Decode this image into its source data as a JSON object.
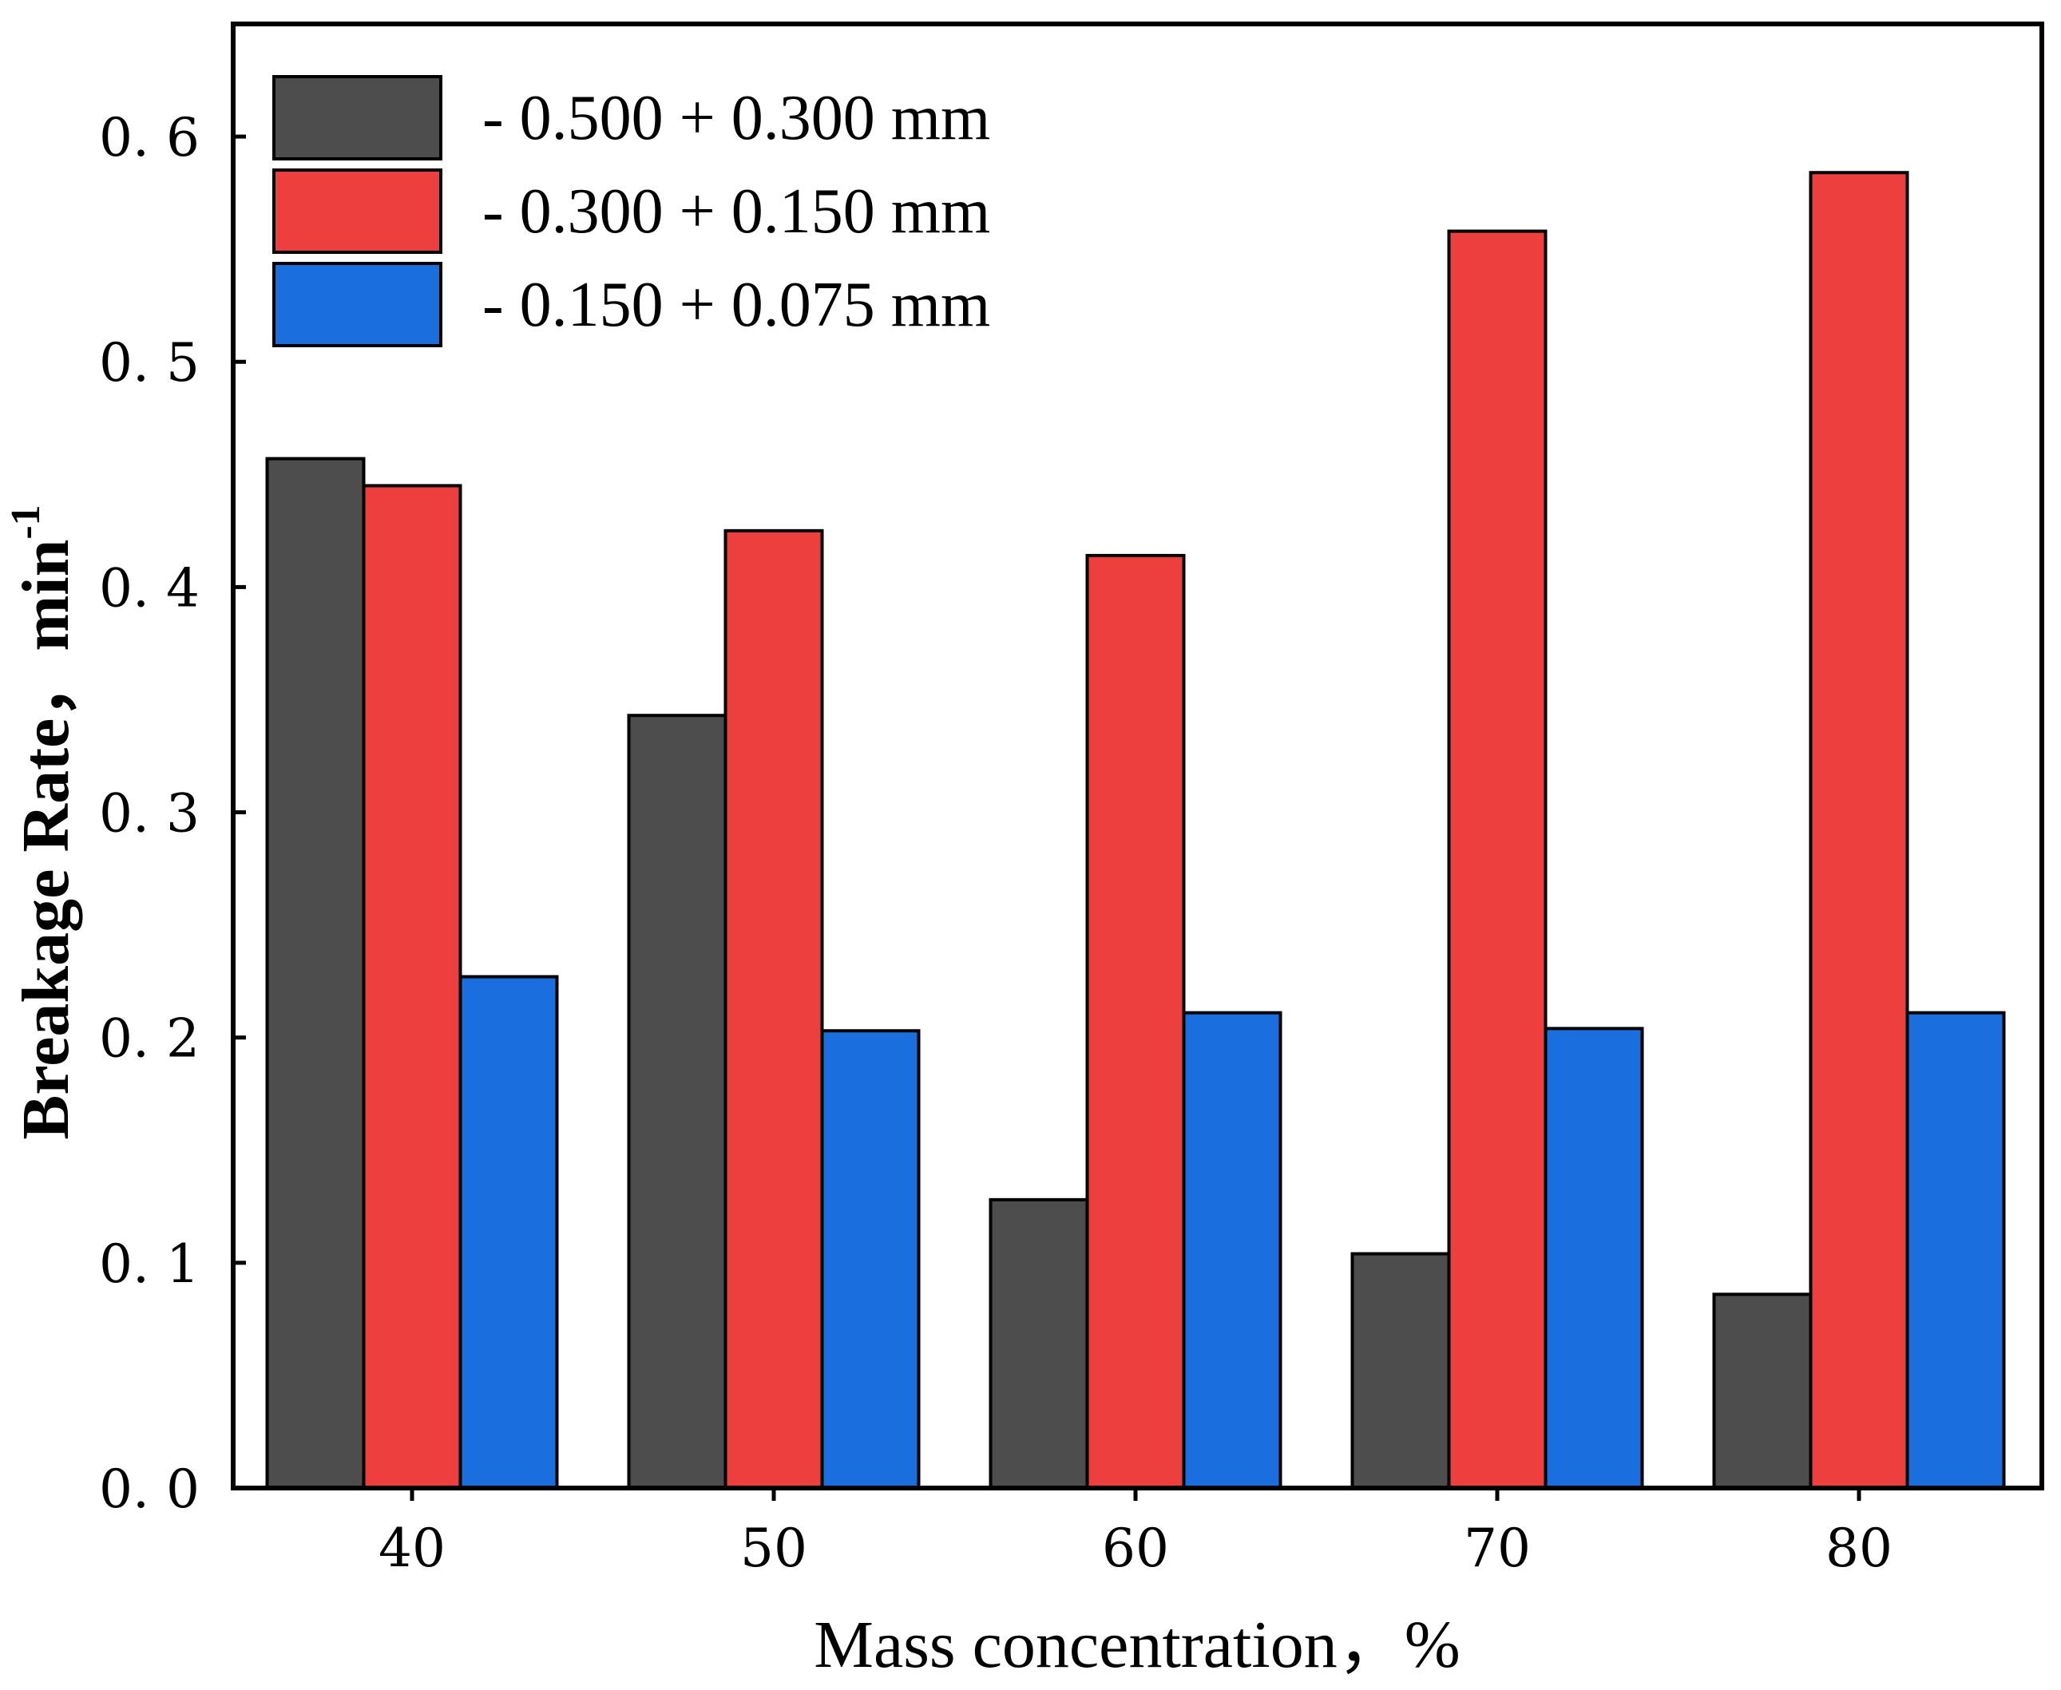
{
  "chart_data": {
    "type": "bar",
    "title": "",
    "categories": [
      "40",
      "50",
      "60",
      "70",
      "80"
    ],
    "series": [
      {
        "name": "- 0.500 + 0.300 mm",
        "color": "#4d4d4d",
        "values": [
          0.457,
          0.343,
          0.128,
          0.104,
          0.086
        ]
      },
      {
        "name": "- 0.300 + 0.150 mm",
        "color": "#ee3f3f",
        "values": [
          0.445,
          0.425,
          0.414,
          0.558,
          0.584
        ]
      },
      {
        "name": "- 0.150 + 0.075 mm",
        "color": "#1b6ede",
        "values": [
          0.227,
          0.203,
          0.211,
          0.204,
          0.211
        ]
      }
    ],
    "xlabel": "Mass concentration，%",
    "ylabel": "Breakage Rate，min",
    "ylabel_sup": "-1",
    "ylim": [
      0,
      0.65
    ],
    "yticks": [
      "0. 0",
      "0. 1",
      "0. 2",
      "0. 3",
      "0. 4",
      "0. 5",
      "0. 6"
    ],
    "ytick_values": [
      0,
      0.1,
      0.2,
      0.3,
      0.4,
      0.5,
      0.6
    ],
    "grid": false,
    "legend_position": "top-left"
  }
}
